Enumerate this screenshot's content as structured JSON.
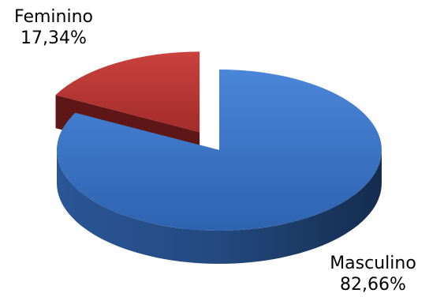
{
  "chart_data": {
    "type": "pie",
    "title": "",
    "slices": [
      {
        "name": "Masculino",
        "value": 82.66,
        "label_value": "82,66%",
        "color": "#3A73C6",
        "dark": "#1E4478",
        "exploded": false
      },
      {
        "name": "Feminino",
        "value": 17.34,
        "label_value": "17,34%",
        "color": "#B03230",
        "dark": "#5E1616",
        "exploded": true
      }
    ],
    "legend": "none",
    "style": "3d"
  }
}
